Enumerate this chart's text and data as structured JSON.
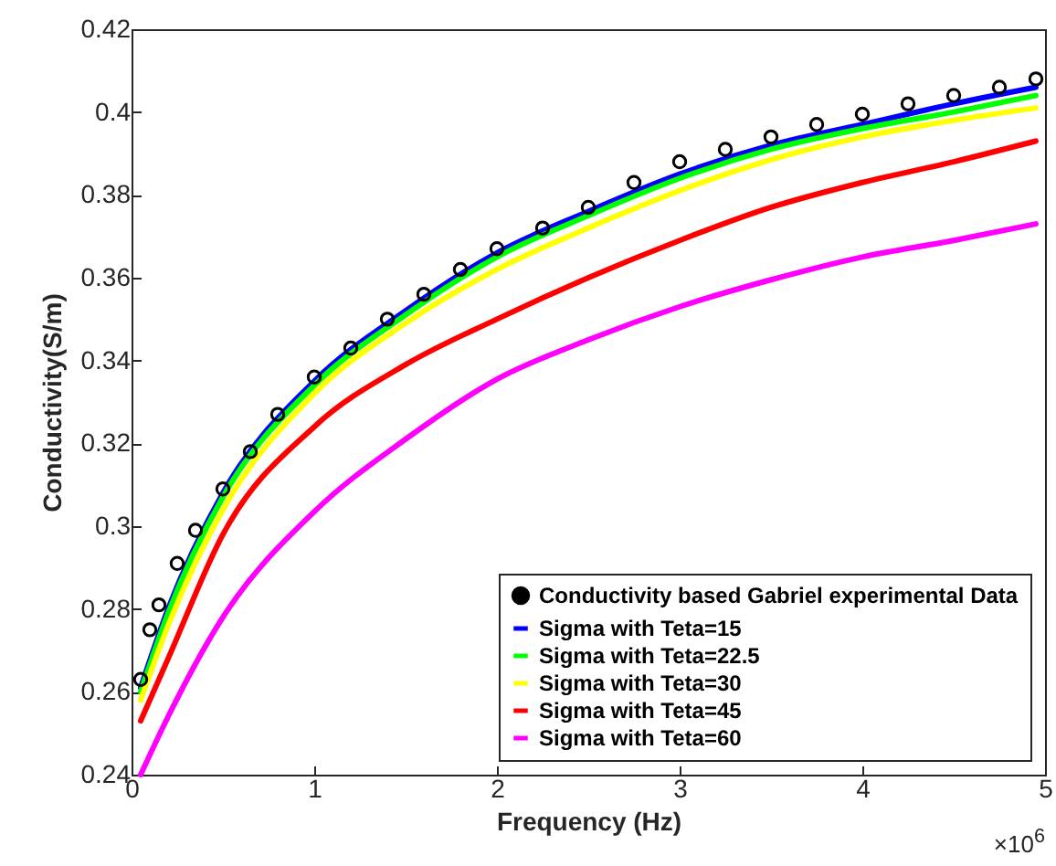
{
  "chart_data": {
    "type": "line",
    "xlabel": "Frequency (Hz)",
    "ylabel": "Conductivity(S/m)",
    "annotations": [
      "×10$^{6}$"
    ],
    "xlim": [
      0,
      5
    ],
    "xticks": [
      0,
      1,
      2,
      3,
      4,
      5
    ],
    "ylim": [
      0.24,
      0.42
    ],
    "yticks": [
      0.24,
      0.26,
      0.28,
      0.3,
      0.32,
      0.34,
      0.36,
      0.38,
      0.4,
      0.42
    ],
    "grid": false,
    "legend": "bottom right",
    "line_style": "solid",
    "series": [
      {
        "name": "Conductivity based Gabriel experimental Data",
        "type": "scatter",
        "marker": "circle",
        "color": "#000000",
        "x": [
          0.05,
          0.1,
          0.15,
          0.25,
          0.35,
          0.5,
          0.65,
          0.8,
          1,
          1.2,
          1.4,
          1.6,
          1.8,
          2,
          2.25,
          2.5,
          2.75,
          3,
          3.25,
          3.5,
          3.75,
          4,
          4.25,
          4.5,
          4.75,
          4.95
        ],
        "values": [
          0.263,
          0.275,
          0.281,
          0.291,
          0.299,
          0.309,
          0.318,
          0.327,
          0.336,
          0.343,
          0.35,
          0.356,
          0.362,
          0.367,
          0.372,
          0.377,
          0.383,
          0.388,
          0.391,
          0.394,
          0.397,
          0.3995,
          0.402,
          0.404,
          0.406,
          0.408
        ]
      },
      {
        "name": "Sigma with Teta=15",
        "color": "#0000ff",
        "x": [
          0.05,
          0.2,
          0.5,
          1,
          1.5,
          2,
          2.5,
          3,
          3.5,
          4,
          4.5,
          4.95
        ],
        "values": [
          0.261,
          0.28,
          0.308,
          0.335,
          0.352,
          0.366,
          0.376,
          0.385,
          0.392,
          0.397,
          0.402,
          0.406
        ]
      },
      {
        "name": "Sigma with Teta=22.5",
        "color": "#00ff00",
        "x": [
          0.05,
          0.2,
          0.5,
          1,
          1.5,
          2,
          2.5,
          3,
          3.5,
          4,
          4.5,
          4.95
        ],
        "values": [
          0.26,
          0.279,
          0.307,
          0.334,
          0.351,
          0.365,
          0.375,
          0.384,
          0.391,
          0.396,
          0.4,
          0.404
        ]
      },
      {
        "name": "Sigma with Teta=30",
        "color": "#ffff00",
        "x": [
          0.05,
          0.2,
          0.5,
          1,
          1.5,
          2,
          2.5,
          3,
          3.5,
          4,
          4.5,
          4.95
        ],
        "values": [
          0.258,
          0.276,
          0.304,
          0.332,
          0.349,
          0.362,
          0.372,
          0.381,
          0.3885,
          0.394,
          0.398,
          0.401
        ]
      },
      {
        "name": " Sigma with Teta=45",
        "color": "#ff0000",
        "x": [
          0.05,
          0.2,
          0.5,
          1,
          1.5,
          2,
          2.5,
          3,
          3.5,
          4,
          4.5,
          4.95
        ],
        "values": [
          0.253,
          0.268,
          0.298,
          0.324,
          0.339,
          0.35,
          0.36,
          0.369,
          0.377,
          0.383,
          0.388,
          0.393
        ]
      },
      {
        "name": "Sigma with Teta=60",
        "color": "#ff00ff",
        "x": [
          0.05,
          0.2,
          0.5,
          1,
          1.5,
          2,
          2.5,
          3,
          3.5,
          4,
          4.5,
          4.95
        ],
        "values": [
          0.24,
          0.254,
          0.278,
          0.3035,
          0.321,
          0.3355,
          0.345,
          0.353,
          0.3595,
          0.365,
          0.369,
          0.373
        ]
      }
    ]
  }
}
